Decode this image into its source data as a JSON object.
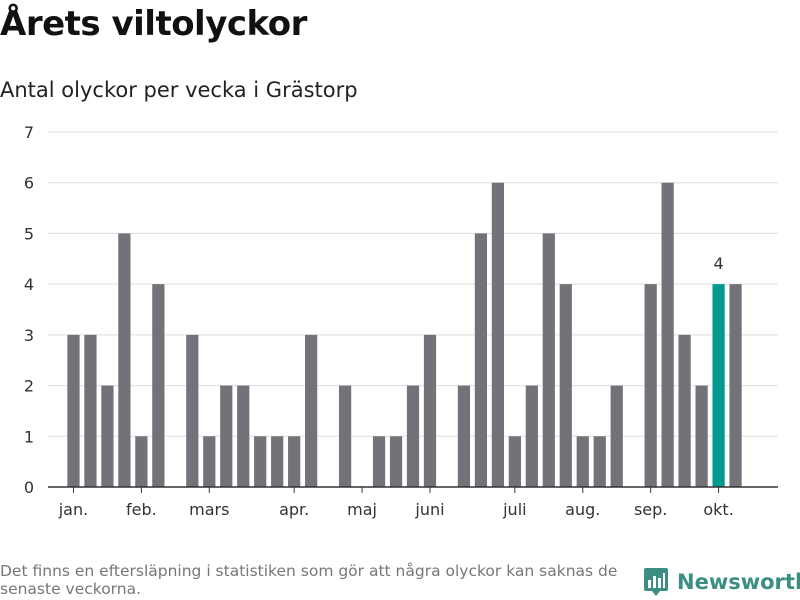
{
  "title": "Årets viltolyckor",
  "subtitle": "Antal olyckor per vecka i Grästorp",
  "footnote": "Det finns en eftersläpning i statistiken som gör att några olyckor kan saknas de senaste veckorna.",
  "brand": {
    "name": "Newsworthy",
    "icon": "newsworthy-logo-icon"
  },
  "colors": {
    "bar": "#737278",
    "highlight": "#009a8e",
    "grid": "#dddddd",
    "axis": "#333333",
    "brand": "#3a8e83"
  },
  "chart_data": {
    "type": "bar",
    "title": "Årets viltolyckor",
    "subtitle": "Antal olyckor per vecka i Grästorp",
    "xlabel": "",
    "ylabel": "",
    "x_unit": "week",
    "weeks": [
      1,
      2,
      3,
      4,
      5,
      6,
      7,
      8,
      9,
      10,
      11,
      12,
      13,
      14,
      15,
      16,
      17,
      18,
      19,
      20,
      21,
      22,
      23,
      24,
      25,
      26,
      27,
      28,
      29,
      30,
      31,
      32,
      33,
      34,
      35,
      36,
      37,
      38,
      39,
      40,
      41,
      42,
      43
    ],
    "values": [
      0,
      3,
      3,
      2,
      5,
      1,
      4,
      0,
      3,
      1,
      2,
      2,
      1,
      1,
      1,
      3,
      0,
      2,
      0,
      1,
      1,
      2,
      3,
      0,
      2,
      5,
      6,
      1,
      2,
      5,
      4,
      1,
      1,
      2,
      0,
      4,
      6,
      3,
      2,
      4,
      4,
      null,
      null
    ],
    "highlight_week": 40,
    "highlight_label": "4",
    "month_ticks": [
      {
        "label": "jan.",
        "week": 2
      },
      {
        "label": "feb.",
        "week": 6
      },
      {
        "label": "mars",
        "week": 10
      },
      {
        "label": "apr.",
        "week": 15
      },
      {
        "label": "maj",
        "week": 19
      },
      {
        "label": "juni",
        "week": 23
      },
      {
        "label": "juli",
        "week": 28
      },
      {
        "label": "aug.",
        "week": 32
      },
      {
        "label": "sep.",
        "week": 36
      },
      {
        "label": "okt.",
        "week": 40
      }
    ],
    "yticks": [
      0,
      1,
      2,
      3,
      4,
      5,
      6,
      7
    ],
    "ylim": [
      0,
      7
    ],
    "grid": true,
    "legend": "none"
  }
}
